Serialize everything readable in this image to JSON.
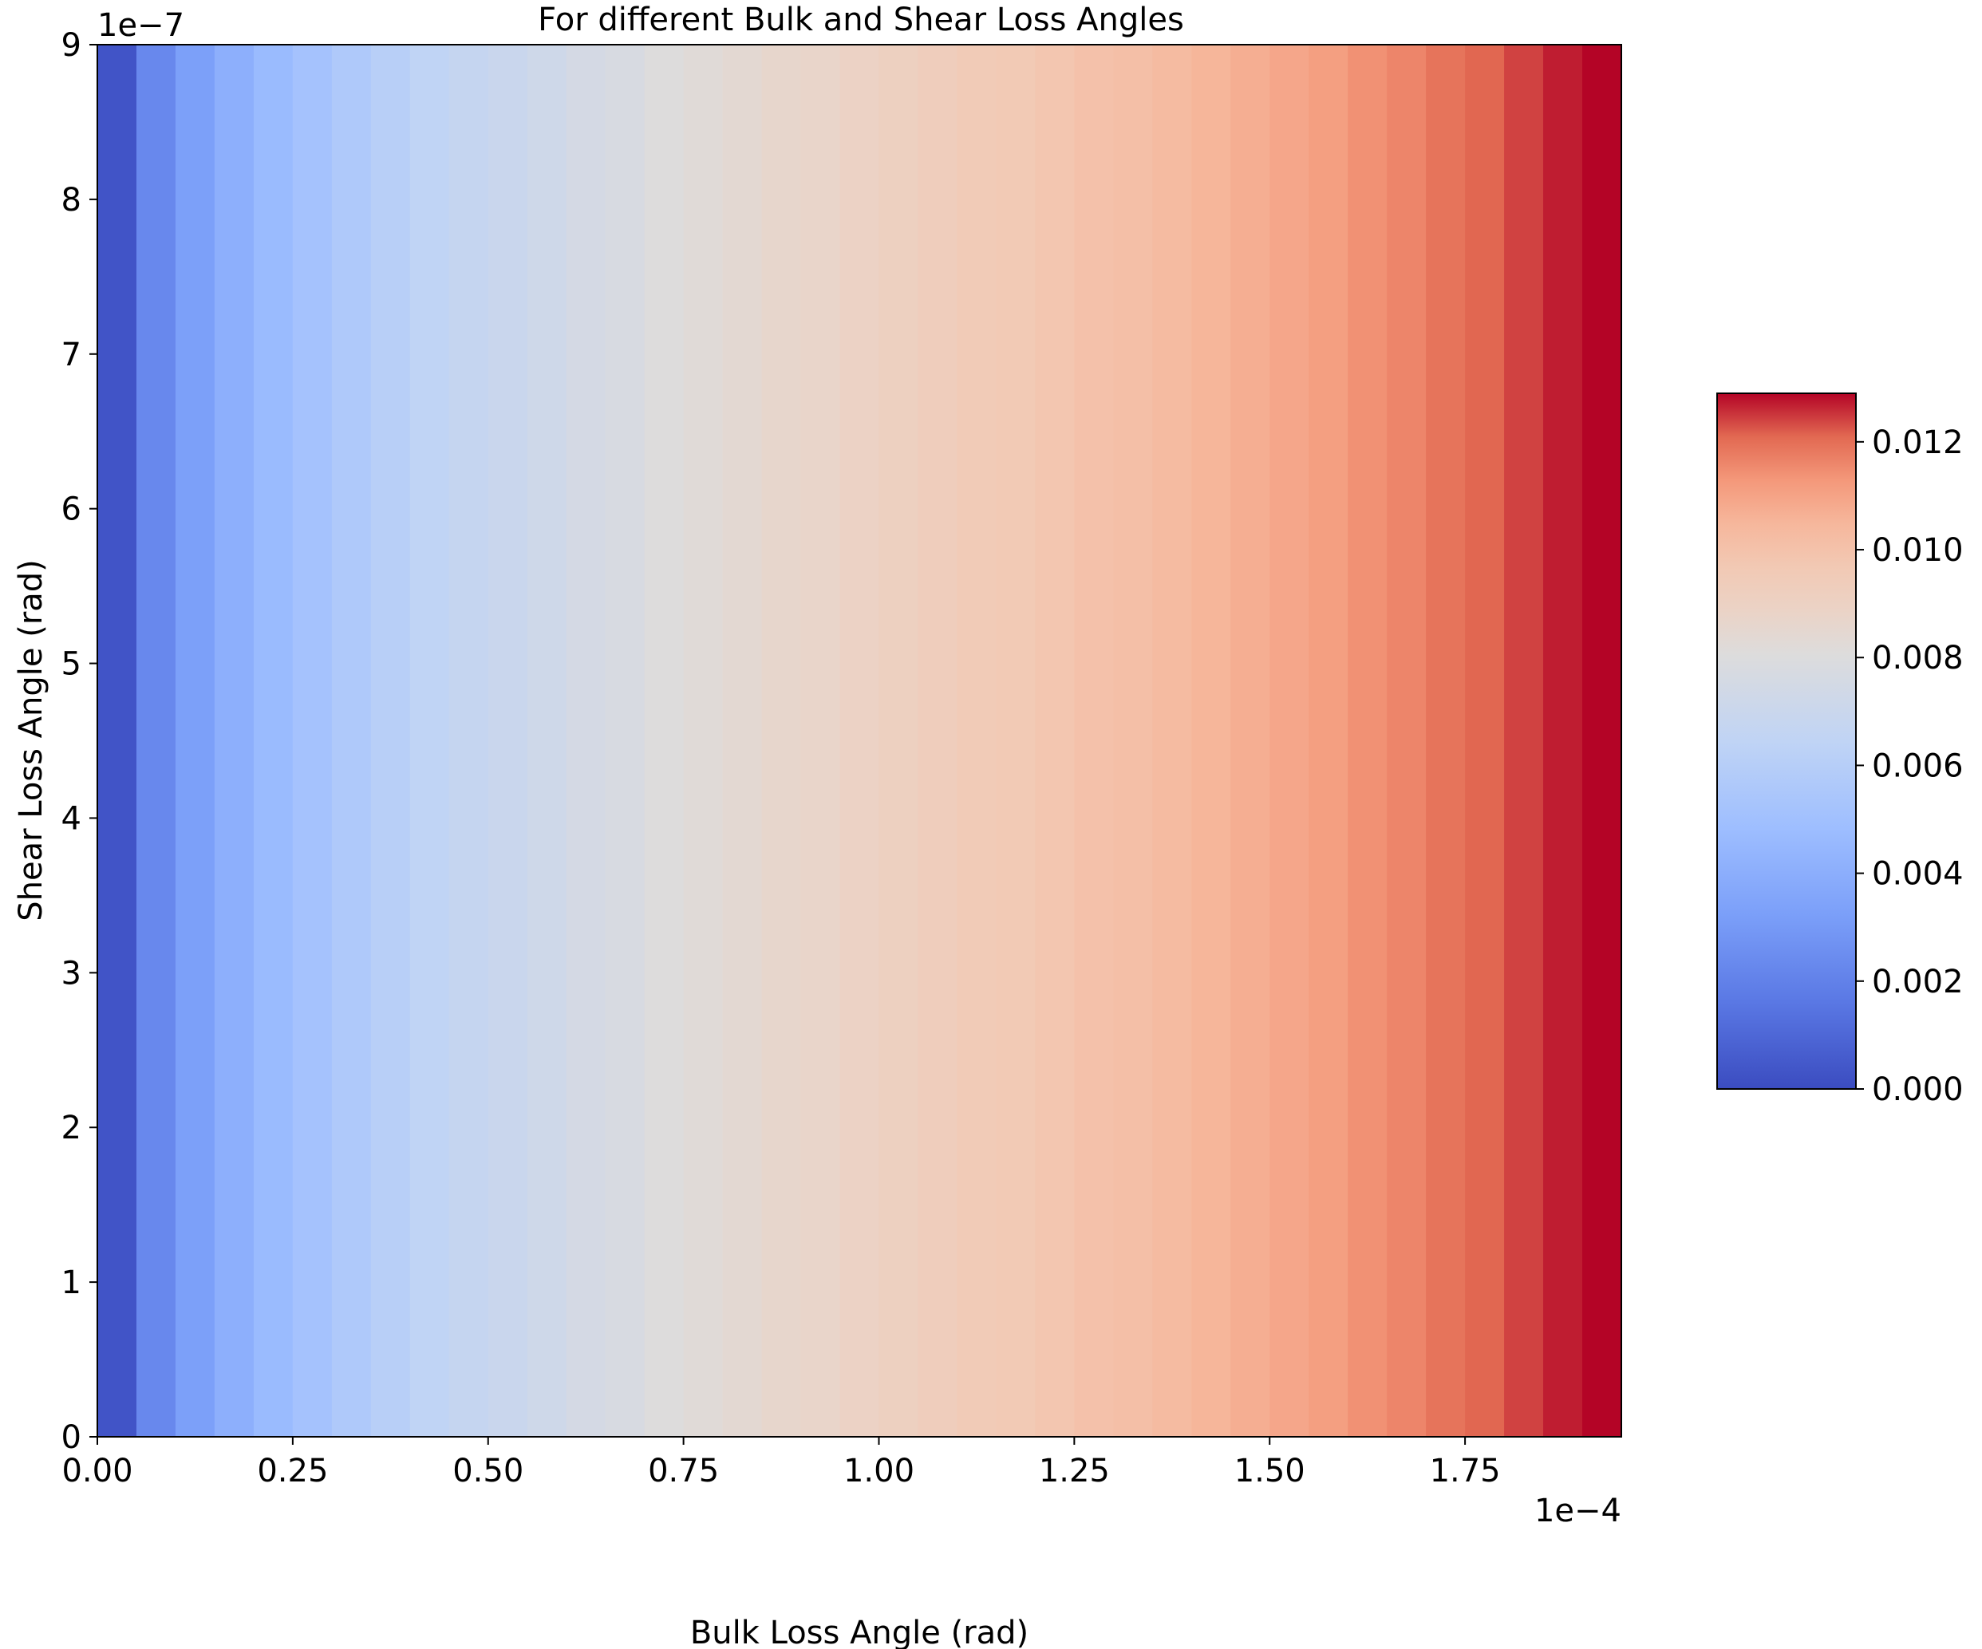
{
  "chart_data": {
    "type": "heatmap",
    "title": "For different Bulk and Shear Loss Angles",
    "xlabel": "Bulk Loss Angle (rad)",
    "ylabel": "Shear Loss Angle (rad)",
    "x_multiplier": "1e−4",
    "y_multiplier": "1e−7",
    "xlim": [
      0,
      0.000195
    ],
    "ylim": [
      0,
      9e-07
    ],
    "x_ticks": [
      0,
      2.5e-05,
      5e-05,
      7.5e-05,
      0.0001,
      0.000125,
      0.00015,
      0.000175
    ],
    "x_tick_labels": [
      "0.00",
      "0.25",
      "0.50",
      "0.75",
      "1.00",
      "1.25",
      "1.50",
      "1.75"
    ],
    "y_ticks": [
      0,
      1e-07,
      2e-07,
      3e-07,
      4e-07,
      5e-07,
      6e-07,
      7e-07,
      8e-07,
      9e-07
    ],
    "y_tick_labels": [
      "0",
      "1",
      "2",
      "3",
      "4",
      "5",
      "6",
      "7",
      "8",
      "9"
    ],
    "x_bin_edges": [
      0,
      5e-06,
      1e-05,
      1.5e-05,
      2e-05,
      2.5e-05,
      3e-05,
      3.5e-05,
      4e-05,
      4.5e-05,
      5e-05,
      5.5e-05,
      6e-05,
      6.5e-05,
      7e-05,
      7.5e-05,
      8e-05,
      8.5e-05,
      9e-05,
      9.5e-05,
      0.0001,
      0.000105,
      0.00011,
      0.000115,
      0.00012,
      0.000125,
      0.00013,
      0.000135,
      0.00014,
      0.000145,
      0.00015,
      0.000155,
      0.00016,
      0.000165,
      0.00017,
      0.000175,
      0.00018,
      0.000185,
      0.00019,
      0.000195
    ],
    "values": [
      0.0003,
      0.0023,
      0.0033,
      0.0041,
      0.0047,
      0.0052,
      0.0057,
      0.0061,
      0.0065,
      0.0068,
      0.007,
      0.0073,
      0.0076,
      0.0078,
      0.0081,
      0.0083,
      0.0085,
      0.0087,
      0.0088,
      0.009,
      0.0092,
      0.0094,
      0.0096,
      0.0097,
      0.0099,
      0.0101,
      0.0102,
      0.0104,
      0.0106,
      0.0108,
      0.011,
      0.0112,
      0.0115,
      0.0117,
      0.012,
      0.0122,
      0.0125,
      0.0128,
      0.013
    ],
    "colorbar": {
      "colormap": "coolwarm",
      "range": [
        0,
        0.013
      ],
      "ticks": [
        0,
        0.002,
        0.004,
        0.006,
        0.008,
        0.01,
        0.012
      ],
      "tick_labels": [
        "0.000",
        "0.002",
        "0.004",
        "0.006",
        "0.008",
        "0.010",
        "0.012"
      ]
    },
    "grid": false,
    "legend": false
  }
}
